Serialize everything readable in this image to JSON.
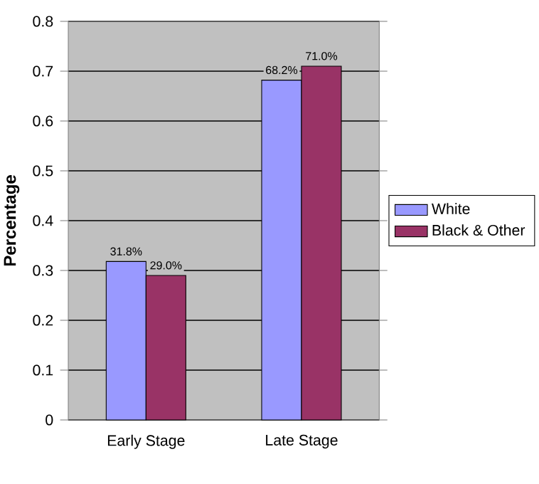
{
  "chart_data": {
    "type": "bar",
    "ylabel": "Percentage",
    "categories": [
      "Early Stage",
      "Late Stage"
    ],
    "series": [
      {
        "name": "White",
        "color": "#9999ff",
        "values": [
          0.318,
          0.682
        ],
        "value_labels": [
          "31.8%",
          "68.2%"
        ]
      },
      {
        "name": "Black & Other",
        "color": "#993366",
        "values": [
          0.29,
          0.71
        ],
        "value_labels": [
          "29.0%",
          "71.0%"
        ]
      }
    ],
    "ylim": [
      0,
      0.8
    ],
    "yticks": [
      0,
      0.1,
      0.2,
      0.3,
      0.4,
      0.5,
      0.6,
      0.7,
      0.8
    ],
    "grid": "y",
    "legend": "right"
  }
}
